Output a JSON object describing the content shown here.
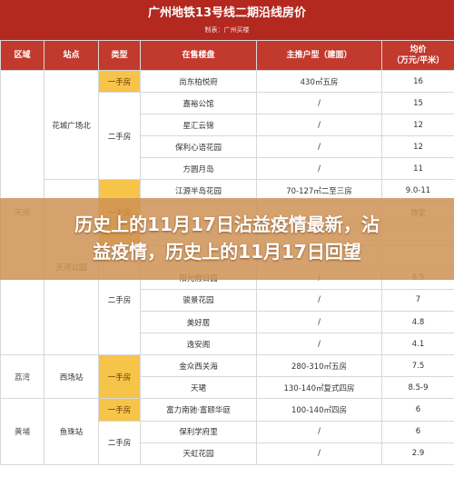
{
  "title": "广州地铁13号线二期沿线房价",
  "subtitle": "制表：广州买楼",
  "headers": [
    "区域",
    "站点",
    "类型",
    "在售楼盘",
    "主推户型（建面）",
    "均价\n（万元/平米）"
  ],
  "groups": [
    {
      "zone": "天河",
      "stations": [
        {
          "station": "花城广场北",
          "types": [
            {
              "type": "一手房",
              "first": true,
              "rows": [
                {
                  "name": "尚东柏悦府",
                  "layout": "430㎡五房",
                  "price": "16"
                }
              ]
            },
            {
              "type": "二手房",
              "first": false,
              "rows": [
                {
                  "name": "嘉裕公馆",
                  "layout": "/",
                  "price": "15"
                },
                {
                  "name": "星汇云锦",
                  "layout": "/",
                  "price": "12"
                },
                {
                  "name": "保利心语花园",
                  "layout": "/",
                  "price": "12"
                },
                {
                  "name": "方圆月岛",
                  "layout": "/",
                  "price": "11"
                }
              ]
            }
          ]
        },
        {
          "station": "天河公园",
          "types": [
            {
              "type": "一手房",
              "first": true,
              "rows": [
                {
                  "name": "江源半岛花园",
                  "layout": "70-127㎡二至三房",
                  "price": "9.0-11"
                },
                {
                  "name": "",
                  "layout": "",
                  "price": "待定"
                },
                {
                  "name": "",
                  "layout": "",
                  "price": ""
                }
              ]
            },
            {
              "type": "二手房",
              "first": false,
              "rows": [
                {
                  "name": "",
                  "layout": "",
                  "price": ""
                },
                {
                  "name": "阳光假日园",
                  "layout": "/",
                  "price": "6.5"
                },
                {
                  "name": "骏景花园",
                  "layout": "/",
                  "price": "7"
                },
                {
                  "name": "美好居",
                  "layout": "/",
                  "price": "4.8"
                },
                {
                  "name": "逸安阁",
                  "layout": "/",
                  "price": "4.1"
                }
              ]
            }
          ]
        }
      ]
    },
    {
      "zone": "荔湾",
      "stations": [
        {
          "station": "西场站",
          "types": [
            {
              "type": "一手房",
              "first": true,
              "rows": [
                {
                  "name": "金众西关海",
                  "layout": "280-310㎡五房",
                  "price": "7.5"
                },
                {
                  "name": "天珺",
                  "layout": "130-140㎡复式四房",
                  "price": "8.5-9"
                }
              ]
            }
          ]
        }
      ]
    },
    {
      "zone": "黄埔",
      "stations": [
        {
          "station": "鱼珠站",
          "types": [
            {
              "type": "一手房",
              "first": true,
              "rows": [
                {
                  "name": "富力南驰·富颐华庭",
                  "layout": "100-140㎡四房",
                  "price": "6"
                }
              ]
            },
            {
              "type": "二手房",
              "first": false,
              "rows": [
                {
                  "name": "保利学府里",
                  "layout": "/",
                  "price": "6"
                },
                {
                  "name": "天虹花园",
                  "layout": "/",
                  "price": "2.9"
                }
              ]
            }
          ]
        }
      ]
    }
  ],
  "overlay": {
    "line1": "历史上的11月17日沾益疫情最新，沾",
    "line2": "益疫情，历史上的11月17日回望"
  }
}
